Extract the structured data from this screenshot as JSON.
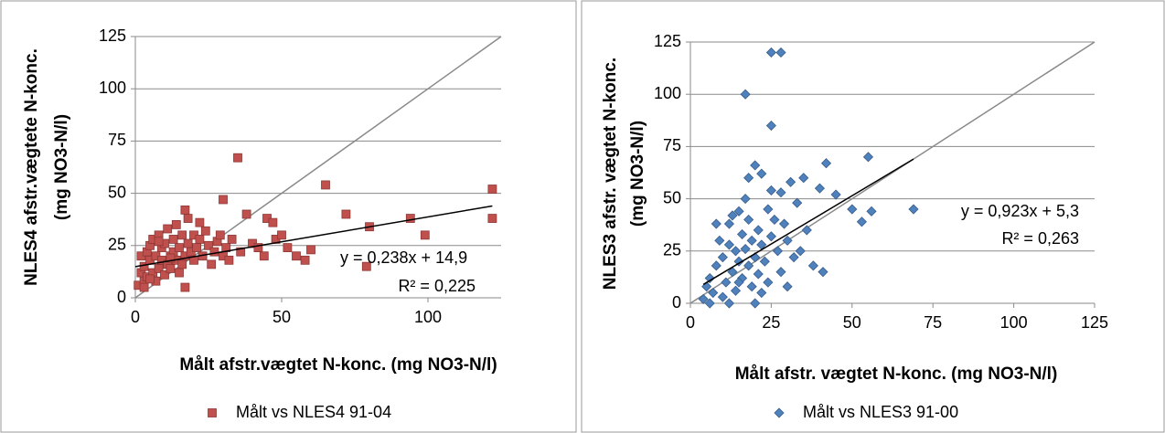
{
  "chart_data": [
    {
      "type": "scatter",
      "xlabel": "Målt afstr.vægtet N-konc. (mg NO3-N/l)",
      "ylabel": [
        "NLES4 afstr.vægtete N-konc.",
        "(mg NO3-N/l)"
      ],
      "xlim": [
        0,
        125
      ],
      "ylim": [
        0,
        125
      ],
      "xticks": [
        0,
        50,
        100
      ],
      "yticks": [
        0,
        25,
        50,
        75,
        100,
        125
      ],
      "grid": true,
      "annotations": [
        "y = 0,238x + 14,9",
        "R² = 0,225"
      ],
      "trendline": {
        "slope": 0.238,
        "intercept": 14.9,
        "x_range": [
          0,
          122
        ]
      },
      "series": [
        {
          "name": "Målt vs NLES4 91-04",
          "color": "#c0504d",
          "marker": "square",
          "x": [
            1,
            2,
            2,
            3,
            3,
            4,
            4,
            5,
            5,
            6,
            6,
            7,
            7,
            8,
            8,
            9,
            9,
            10,
            10,
            11,
            11,
            12,
            12,
            13,
            13,
            14,
            14,
            15,
            15,
            16,
            16,
            17,
            17,
            18,
            18,
            19,
            20,
            20,
            21,
            22,
            23,
            24,
            25,
            26,
            27,
            28,
            29,
            30,
            31,
            32,
            33,
            35,
            36,
            38,
            40,
            42,
            44,
            45,
            47,
            48,
            50,
            52,
            55,
            58,
            60,
            65,
            72,
            79,
            80,
            94,
            99,
            122,
            122,
            3,
            5,
            8,
            12,
            17,
            22,
            30
          ],
          "y": [
            6,
            12,
            20,
            8,
            15,
            22,
            10,
            18,
            25,
            12,
            28,
            8,
            20,
            14,
            30,
            18,
            24,
            11,
            26,
            16,
            33,
            20,
            14,
            28,
            22,
            18,
            35,
            24,
            12,
            30,
            16,
            42,
            20,
            26,
            38,
            22,
            18,
            30,
            24,
            28,
            20,
            32,
            25,
            16,
            22,
            27,
            30,
            20,
            24,
            18,
            28,
            67,
            22,
            40,
            26,
            24,
            20,
            38,
            36,
            28,
            30,
            24,
            20,
            18,
            23,
            54,
            40,
            15,
            34,
            38,
            30,
            52,
            38,
            5,
            9,
            27,
            19,
            5,
            36,
            47
          ]
        }
      ]
    },
    {
      "type": "scatter",
      "xlabel": "Målt afstr. vægtet N-konc. (mg NO3-N/l)",
      "ylabel": [
        "NLES3 afstr. vægtet N-konc.",
        "(mg NO3-N/l)"
      ],
      "xlim": [
        0,
        125
      ],
      "ylim": [
        0,
        125
      ],
      "xticks": [
        0,
        25,
        50,
        75,
        100,
        125
      ],
      "yticks": [
        0,
        25,
        50,
        75,
        100,
        125
      ],
      "grid": true,
      "annotations": [
        "y = 0,923x + 5,3",
        "R² = 0,263"
      ],
      "trendline": {
        "slope": 0.923,
        "intercept": 5.3,
        "x_range": [
          4,
          69
        ]
      },
      "series": [
        {
          "name": "Målt vs NLES3 91-00",
          "color": "#4f81bd",
          "marker": "diamond",
          "x": [
            4,
            5,
            6,
            7,
            8,
            9,
            10,
            10,
            11,
            12,
            12,
            13,
            14,
            14,
            15,
            15,
            16,
            16,
            17,
            17,
            18,
            18,
            19,
            19,
            20,
            20,
            21,
            21,
            22,
            22,
            23,
            24,
            24,
            25,
            25,
            26,
            27,
            28,
            28,
            29,
            30,
            31,
            32,
            33,
            35,
            36,
            38,
            40,
            42,
            45,
            50,
            53,
            55,
            56,
            69,
            25,
            28,
            17,
            25,
            8,
            12,
            15,
            20,
            22,
            18,
            30,
            34,
            41,
            6,
            13
          ],
          "y": [
            2,
            8,
            12,
            5,
            18,
            30,
            3,
            22,
            10,
            28,
            38,
            15,
            6,
            25,
            20,
            44,
            12,
            33,
            26,
            50,
            18,
            40,
            8,
            30,
            22,
            66,
            14,
            35,
            28,
            62,
            20,
            45,
            10,
            54,
            32,
            40,
            25,
            53,
            15,
            38,
            30,
            58,
            22,
            48,
            60,
            35,
            18,
            55,
            67,
            52,
            45,
            39,
            70,
            44,
            45,
            120,
            120,
            100,
            85,
            38,
            0,
            10,
            0,
            5,
            60,
            8,
            25,
            15,
            0,
            42
          ]
        }
      ]
    }
  ]
}
